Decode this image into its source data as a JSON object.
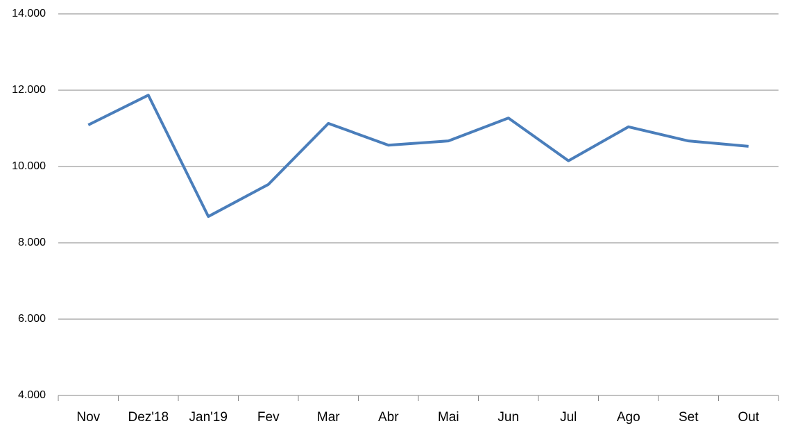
{
  "chart_data": {
    "type": "line",
    "categories": [
      "Nov",
      "Dez'18",
      "Jan'19",
      "Fev",
      "Mar",
      "Abr",
      "Mai",
      "Jun",
      "Jul",
      "Ago",
      "Set",
      "Out"
    ],
    "series": [
      {
        "color": "#4a7ebb",
        "values": [
          11090,
          11870,
          8690,
          9530,
          11130,
          10560,
          10670,
          11270,
          10150,
          11040,
          10670,
          10530
        ]
      }
    ],
    "ylim": [
      4000,
      14000
    ],
    "yticks": [
      {
        "value": 4000,
        "label": "4.000"
      },
      {
        "value": 6000,
        "label": "6.000"
      },
      {
        "value": 8000,
        "label": "8.000"
      },
      {
        "value": 10000,
        "label": "10.000"
      },
      {
        "value": 12000,
        "label": "12.000"
      },
      {
        "value": 14000,
        "label": "14.000"
      }
    ],
    "grid": true
  }
}
